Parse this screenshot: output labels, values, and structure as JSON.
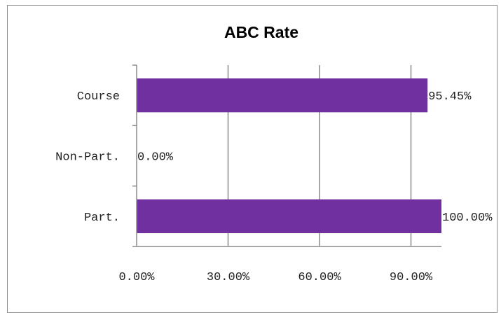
{
  "chart_data": {
    "type": "bar",
    "orientation": "horizontal",
    "title": "ABC Rate",
    "categories": [
      "Course",
      "Non-Part.",
      "Part."
    ],
    "values": [
      95.45,
      0.0,
      100.0
    ],
    "data_labels": [
      "95.45%",
      "0.00%",
      "100.00%"
    ],
    "x_ticks": [
      "0.00%",
      "30.00%",
      "60.00%",
      "90.00%"
    ],
    "x_tick_values": [
      0,
      30,
      60,
      90
    ],
    "xlim": [
      0,
      100
    ],
    "grid": true,
    "legend": "none",
    "bar_color": "#7030a0",
    "gridline_color": "#8c8c8c"
  }
}
